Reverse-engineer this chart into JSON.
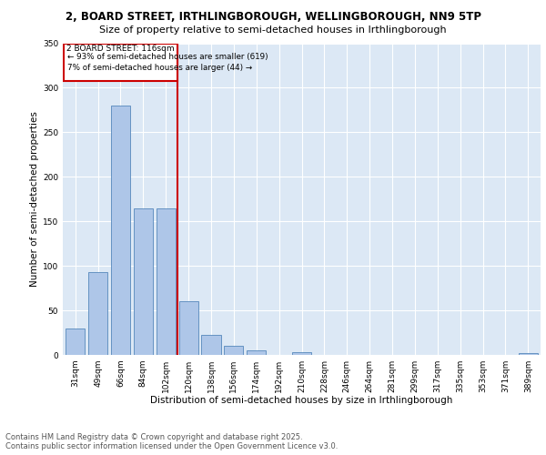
{
  "title_line1": "2, BOARD STREET, IRTHLINGBOROUGH, WELLINGBOROUGH, NN9 5TP",
  "title_line2": "Size of property relative to semi-detached houses in Irthlingborough",
  "xlabel": "Distribution of semi-detached houses by size in Irthlingborough",
  "ylabel": "Number of semi-detached properties",
  "categories": [
    "31sqm",
    "49sqm",
    "66sqm",
    "84sqm",
    "102sqm",
    "120sqm",
    "138sqm",
    "156sqm",
    "174sqm",
    "192sqm",
    "210sqm",
    "228sqm",
    "246sqm",
    "264sqm",
    "281sqm",
    "299sqm",
    "317sqm",
    "335sqm",
    "353sqm",
    "371sqm",
    "389sqm"
  ],
  "values": [
    30,
    93,
    280,
    165,
    165,
    60,
    22,
    10,
    5,
    0,
    3,
    0,
    0,
    0,
    0,
    0,
    0,
    0,
    0,
    0,
    2
  ],
  "bar_color": "#aec6e8",
  "bar_edge_color": "#5588bb",
  "property_label": "2 BOARD STREET: 116sqm",
  "annotation_line1": "← 93% of semi-detached houses are smaller (619)",
  "annotation_line2": "7% of semi-detached houses are larger (44) →",
  "vline_color": "#cc0000",
  "box_color": "#cc0000",
  "ylim": [
    0,
    350
  ],
  "yticks": [
    0,
    50,
    100,
    150,
    200,
    250,
    300,
    350
  ],
  "footer_line1": "Contains HM Land Registry data © Crown copyright and database right 2025.",
  "footer_line2": "Contains public sector information licensed under the Open Government Licence v3.0.",
  "plot_bg_color": "#dce8f5",
  "title_fontsize": 8.5,
  "subtitle_fontsize": 8,
  "axis_label_fontsize": 7.5,
  "tick_fontsize": 6.5,
  "annotation_fontsize": 6.5,
  "footer_fontsize": 6
}
